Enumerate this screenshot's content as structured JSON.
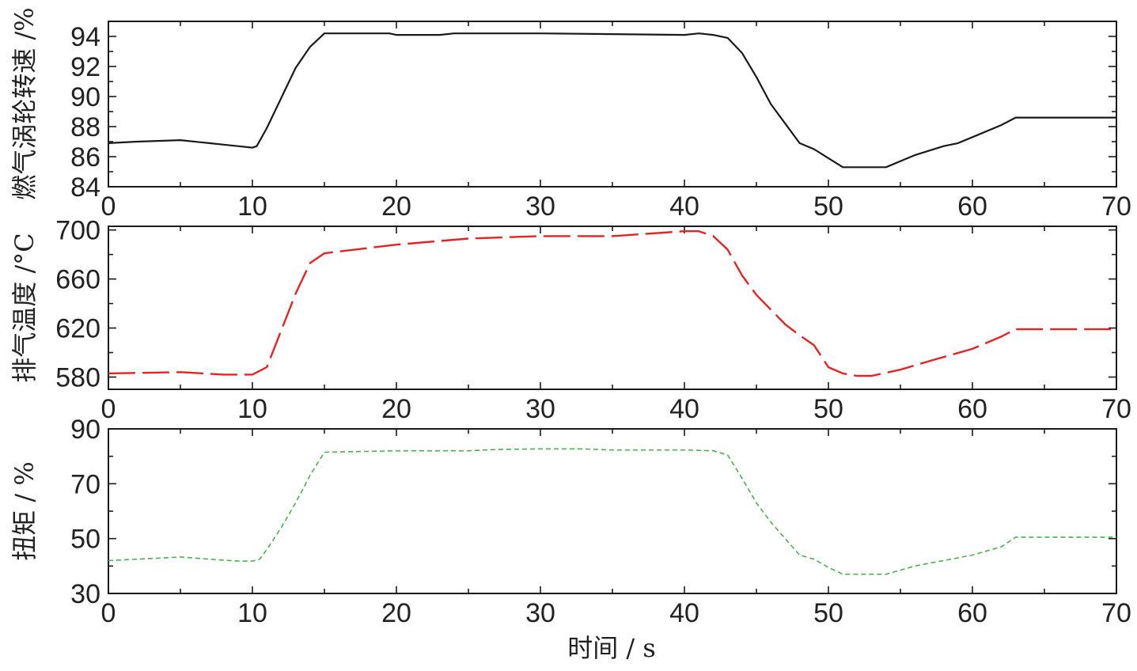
{
  "chart_data": [
    {
      "type": "line",
      "ylabel": "燃气涡轮转速 /%",
      "xlim": [
        0,
        70
      ],
      "ylim": [
        84,
        95
      ],
      "x_ticks": [
        "0",
        "10",
        "20",
        "30",
        "40",
        "50",
        "60",
        "70"
      ],
      "y_ticks": [
        "84",
        "86",
        "88",
        "90",
        "92",
        "94"
      ],
      "grid": false,
      "series": [
        {
          "color": "#1a1a1a",
          "dash": "solid",
          "x": [
            0,
            2,
            5,
            7,
            8,
            9,
            10,
            10.3,
            11,
            12,
            13,
            14,
            15,
            19.5,
            20,
            23,
            24,
            26,
            30,
            40,
            41,
            42,
            43,
            44,
            45,
            46,
            47,
            48,
            49,
            50,
            51,
            52,
            54,
            56,
            58,
            59,
            60,
            62,
            63,
            65,
            70
          ],
          "y": [
            86.9,
            87.0,
            87.1,
            86.9,
            86.8,
            86.7,
            86.6,
            86.7,
            87.9,
            89.9,
            91.9,
            93.3,
            94.2,
            94.2,
            94.1,
            94.1,
            94.2,
            94.2,
            94.2,
            94.1,
            94.2,
            94.1,
            93.9,
            92.9,
            91.3,
            89.5,
            88.2,
            86.9,
            86.5,
            85.9,
            85.3,
            85.3,
            85.3,
            86.1,
            86.7,
            86.9,
            87.3,
            88.1,
            88.6,
            88.6,
            88.6
          ]
        }
      ]
    },
    {
      "type": "line",
      "ylabel": "排气温度 /°C",
      "xlim": [
        0,
        70
      ],
      "ylim": [
        570,
        703
      ],
      "x_ticks": [
        "0",
        "10",
        "20",
        "30",
        "40",
        "50",
        "60",
        "70"
      ],
      "y_ticks": [
        "580",
        "620",
        "660",
        "700"
      ],
      "grid": false,
      "series": [
        {
          "color": "#e32424",
          "dash": "long-dash",
          "x": [
            0,
            5,
            8,
            10,
            11,
            12,
            13,
            14,
            15,
            20,
            25,
            30,
            35,
            40,
            41,
            42,
            43,
            44,
            45,
            46,
            47,
            48,
            49,
            50,
            51,
            52,
            53,
            55,
            57,
            60,
            62,
            63,
            70
          ],
          "y": [
            583,
            584,
            582,
            582,
            588,
            618,
            648,
            673,
            681,
            688,
            693,
            695,
            695,
            699,
            699,
            695,
            684,
            663,
            647,
            635,
            623,
            614,
            606,
            588,
            583,
            581,
            581,
            586,
            593,
            603,
            613,
            619,
            619
          ]
        }
      ]
    },
    {
      "type": "line",
      "ylabel": "扭矩 / %",
      "xlabel": "时间 / s",
      "xlim": [
        0,
        70
      ],
      "ylim": [
        30,
        90
      ],
      "x_ticks": [
        "0",
        "10",
        "20",
        "30",
        "40",
        "50",
        "60",
        "70"
      ],
      "y_ticks": [
        "30",
        "50",
        "70",
        "90"
      ],
      "grid": false,
      "series": [
        {
          "color": "#4caf50",
          "dash": "short-dash",
          "x": [
            0,
            2,
            4,
            5,
            7,
            9,
            10,
            10.5,
            11,
            12,
            13,
            14,
            15,
            20,
            25,
            27,
            30,
            33,
            35,
            40,
            42,
            43,
            44,
            45,
            46,
            47,
            48,
            49,
            50,
            51,
            52,
            54,
            56,
            58,
            60,
            62,
            63,
            65,
            70
          ],
          "y": [
            42,
            42.5,
            43,
            43.3,
            42.5,
            41.8,
            41.8,
            42.5,
            46,
            54,
            63,
            73,
            81.5,
            82,
            82,
            82.5,
            82.7,
            82.7,
            82.3,
            82.3,
            82,
            80.5,
            72,
            63,
            56,
            50,
            44,
            42.5,
            39.5,
            37,
            37,
            37,
            40,
            42,
            44,
            47,
            50.5,
            50.5,
            50.5
          ]
        }
      ]
    }
  ],
  "figure": {
    "xlabel": "时间 / s"
  }
}
